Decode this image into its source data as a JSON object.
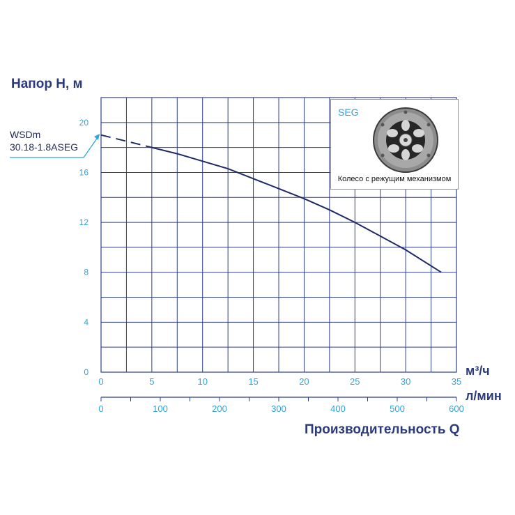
{
  "y_title": "Напор H, м",
  "x_title": "Производительность Q",
  "unit_primary": "м³/ч",
  "unit_secondary": "л/мин",
  "series_label_line1": "WSDm",
  "series_label_line2": "30.18-1.8ASEG",
  "inset": {
    "title": "SEG",
    "caption": "Колесо с режущим механизмом"
  },
  "colors": {
    "grid": "#2e3f8c",
    "curve": "#1f2a66",
    "tick_text": "#2fa3dd",
    "title_text": "#2b3a7a",
    "arrow": "#2fa3dd"
  },
  "chart_data": {
    "type": "line",
    "xlabel": "Производительность Q",
    "ylabel": "Напор H, м",
    "xlim": [
      0,
      35
    ],
    "ylim": [
      0,
      22
    ],
    "grid": true,
    "x_ticks": [
      "0",
      "5",
      "10",
      "15",
      "20",
      "25",
      "30",
      "35"
    ],
    "y_ticks": [
      "0",
      "4",
      "8",
      "12",
      "16",
      "20"
    ],
    "secondary_x_ticks": [
      "0",
      "100",
      "200",
      "300",
      "400",
      "500",
      "600"
    ],
    "secondary_x_lim": [
      0,
      600
    ],
    "series": [
      {
        "name": "WSDm 30.18-1.8ASEG",
        "x": [
          0,
          5,
          7.5,
          10,
          12.5,
          15,
          17.5,
          20,
          22.5,
          25,
          27.5,
          30,
          33.5
        ],
        "y": [
          19,
          18,
          17.5,
          16.9,
          16.3,
          15.5,
          14.7,
          13.9,
          13.0,
          12.0,
          10.9,
          9.8,
          8.0
        ],
        "dashed_until_x": 5
      }
    ]
  }
}
